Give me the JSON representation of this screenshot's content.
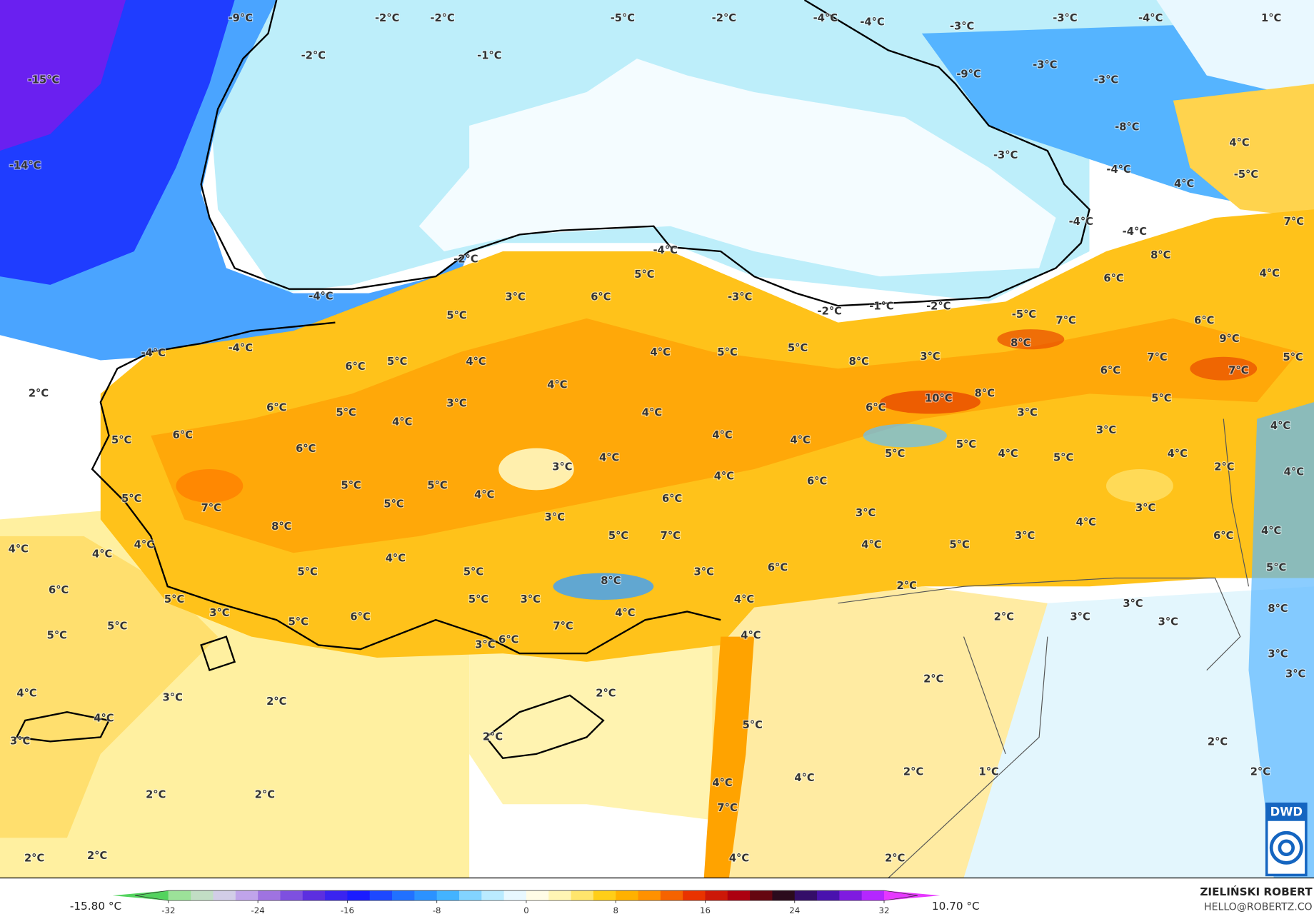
{
  "map": {
    "labels": [
      "-9°C",
      "-2°C",
      "-2°C",
      "-2°C",
      "-1°C",
      "-5°C",
      "-2°C",
      "-4°C",
      "-4°C",
      "-3°C",
      "-3°C",
      "-4°C",
      "1°C",
      "-15°C",
      "-14°C",
      "-9°C",
      "-3°C",
      "-3°C",
      "-8°C",
      "-3°C",
      "4°C",
      "-4°C",
      "4°C",
      "-5°C",
      "-4°C",
      "-4°C",
      "7°C",
      "8°C",
      "4°C",
      "6°C",
      "-2°C",
      "-4°C",
      "5°C",
      "-4°C",
      "3°C",
      "6°C",
      "-3°C",
      "-2°C",
      "-1°C",
      "-2°C",
      "-5°C",
      "7°C",
      "6°C",
      "5°C",
      "-4°C",
      "-4°C",
      "8°C",
      "9°C",
      "5°C",
      "4°C",
      "5°C",
      "8°C",
      "3°C",
      "7°C",
      "5°C",
      "6°C",
      "5°C",
      "4°C",
      "6°C",
      "7°C",
      "2°C",
      "4°C",
      "10°C",
      "8°C",
      "6°C",
      "5°C",
      "3°C",
      "4°C",
      "6°C",
      "3°C",
      "5°C",
      "4°C",
      "4°C",
      "5°C",
      "6°C",
      "4°C",
      "4°C",
      "3°C",
      "6°C",
      "5°C",
      "5°C",
      "4°C",
      "4°C",
      "4°C",
      "3°C",
      "5°C",
      "2°C",
      "4°C",
      "4°C",
      "6°C",
      "5°C",
      "5°C",
      "4°C",
      "5°C",
      "6°C",
      "5°C",
      "7°C",
      "3°C",
      "3°C",
      "3°C",
      "8°C",
      "4°C",
      "3°C",
      "4°C",
      "5°C",
      "7°C",
      "6°C",
      "4°C",
      "4°C",
      "4°C",
      "4°C",
      "5°C",
      "4°C",
      "5°C",
      "5°C",
      "5°C",
      "3°C",
      "6°C",
      "2°C",
      "6°C",
      "8°C",
      "4°C",
      "5°C",
      "5°C",
      "3°C",
      "3°C",
      "8°C",
      "3°C",
      "4°C",
      "2°C",
      "3°C",
      "3°C",
      "5°C",
      "6°C",
      "5°C",
      "7°C",
      "5°C",
      "4°C",
      "3°C",
      "6°C",
      "3°C",
      "2°C",
      "3°C",
      "4°C",
      "3°C",
      "2°C",
      "2°C",
      "4°C",
      "5°C",
      "3°C",
      "2°C",
      "2°C",
      "2°C",
      "1°C",
      "4°C",
      "2°C",
      "4°C",
      "2°C",
      "2°C",
      "7°C",
      "2°C",
      "2°C",
      "2°C",
      "4°C",
      "3°C"
    ]
  },
  "colorbar": {
    "ticks": [
      -32,
      -24,
      -16,
      -8,
      0,
      8,
      16,
      24,
      32
    ],
    "min_label": "-15.80 °C",
    "max_label": "10.70 °C",
    "palette": [
      "#2ecc40",
      "#b8e8b0",
      "#d7c8f0",
      "#9a6be0",
      "#5a2de0",
      "#1a1aff",
      "#1f6cff",
      "#32aaff",
      "#a8e6ff",
      "#ffffff",
      "#fff3a0",
      "#ffc800",
      "#ff8c00",
      "#e83000",
      "#b00010",
      "#2a0a10",
      "#3a10a0",
      "#a020ff",
      "#ff40ff"
    ]
  },
  "credit": {
    "name": "ZIELIŃSKI ROBERT",
    "email": "HELLO@ROBERTZ.CO"
  },
  "logo": {
    "text": "DWD"
  }
}
